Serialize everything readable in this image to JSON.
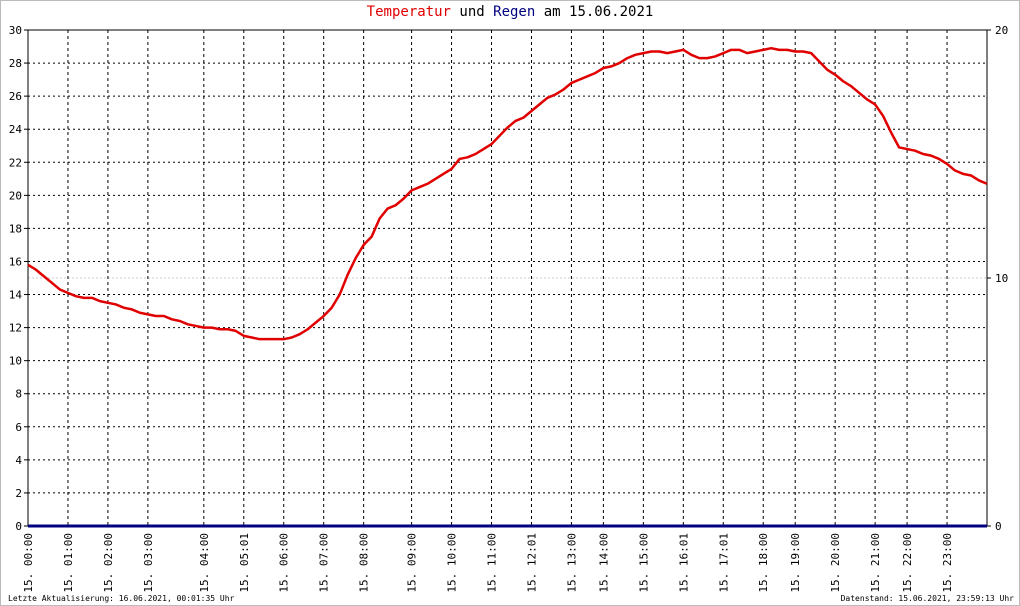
{
  "chart_data": {
    "type": "line",
    "title_join": "und",
    "title_suffix": "am 15.06.2021",
    "footer_left": "Letzte Aktualisierung: 16.06.2021, 00:01:35 Uhr",
    "footer_right": "Datenstand: 15.06.2021, 23:59:13 Uhr",
    "categories": [
      "15. 00:00",
      null,
      null,
      null,
      null,
      "15. 01:00",
      null,
      null,
      null,
      null,
      "15. 02:00",
      null,
      null,
      null,
      null,
      "15. 03:00",
      null,
      null,
      null,
      null,
      null,
      null,
      "15. 04:00",
      null,
      null,
      null,
      null,
      "15. 05:01",
      null,
      null,
      null,
      null,
      "15. 06:00",
      null,
      null,
      null,
      null,
      "15. 07:00",
      null,
      null,
      null,
      null,
      "15. 08:00",
      null,
      null,
      null,
      null,
      null,
      "15. 09:00",
      null,
      null,
      null,
      null,
      "15. 10:00",
      null,
      null,
      null,
      null,
      "15. 11:00",
      null,
      null,
      null,
      null,
      "15. 12:01",
      null,
      null,
      null,
      null,
      "15. 13:00",
      null,
      null,
      null,
      "15. 14:00",
      null,
      null,
      null,
      null,
      "15. 15:00",
      null,
      null,
      null,
      null,
      "15. 16:01",
      null,
      null,
      null,
      null,
      "15. 17:01",
      null,
      null,
      null,
      null,
      "15. 18:00",
      null,
      null,
      null,
      "15. 19:00",
      null,
      null,
      null,
      null,
      "15. 20:00",
      null,
      null,
      null,
      null,
      "15. 21:00",
      null,
      null,
      null,
      "15. 22:00",
      null,
      null,
      null,
      null,
      "15. 23:00",
      null,
      null,
      null,
      null,
      null
    ],
    "series": [
      {
        "name": "Temperatur",
        "color": "#e00000",
        "values": [
          15.8,
          15.5,
          15.1,
          14.7,
          14.3,
          14.1,
          13.9,
          13.8,
          13.8,
          13.6,
          13.5,
          13.4,
          13.2,
          13.1,
          12.9,
          12.8,
          12.7,
          12.7,
          12.5,
          12.4,
          12.2,
          12.1,
          12.0,
          12.0,
          11.9,
          11.9,
          11.8,
          11.5,
          11.4,
          11.3,
          11.3,
          11.3,
          11.3,
          11.4,
          11.6,
          11.9,
          12.3,
          12.7,
          13.2,
          14.0,
          15.2,
          16.2,
          17.0,
          17.5,
          18.6,
          19.2,
          19.4,
          19.8,
          20.3,
          20.5,
          20.7,
          21.0,
          21.3,
          21.6,
          22.2,
          22.3,
          22.5,
          22.8,
          23.1,
          23.6,
          24.1,
          24.5,
          24.7,
          25.1,
          25.5,
          25.9,
          26.1,
          26.4,
          26.8,
          27.0,
          27.2,
          27.4,
          27.7,
          27.8,
          28.0,
          28.3,
          28.5,
          28.6,
          28.7,
          28.7,
          28.6,
          28.7,
          28.8,
          28.5,
          28.3,
          28.3,
          28.4,
          28.6,
          28.8,
          28.8,
          28.6,
          28.7,
          28.8,
          28.9,
          28.8,
          28.8,
          28.7,
          28.7,
          28.6,
          28.1,
          27.6,
          27.3,
          26.9,
          26.6,
          26.2,
          25.8,
          25.5,
          24.8,
          23.8,
          22.9,
          22.8,
          22.7,
          22.5,
          22.4,
          22.2,
          21.9,
          21.5,
          21.3,
          21.2,
          20.9,
          20.7
        ]
      },
      {
        "name": "Regen",
        "color": "#000080",
        "axis": "y2",
        "values": [
          0,
          0,
          0,
          0,
          0,
          0,
          0,
          0,
          0,
          0,
          0,
          0,
          0,
          0,
          0,
          0,
          0,
          0,
          0,
          0,
          0,
          0,
          0,
          0,
          0,
          0,
          0,
          0,
          0,
          0,
          0,
          0,
          0,
          0,
          0,
          0,
          0,
          0,
          0,
          0,
          0,
          0,
          0,
          0,
          0,
          0,
          0,
          0,
          0,
          0,
          0,
          0,
          0,
          0,
          0,
          0,
          0,
          0,
          0,
          0,
          0,
          0,
          0,
          0,
          0,
          0,
          0,
          0,
          0,
          0,
          0,
          0,
          0,
          0,
          0,
          0,
          0,
          0,
          0,
          0,
          0,
          0,
          0,
          0,
          0,
          0,
          0,
          0,
          0,
          0,
          0,
          0,
          0,
          0,
          0,
          0,
          0,
          0,
          0,
          0,
          0,
          0,
          0,
          0,
          0,
          0,
          0,
          0,
          0,
          0,
          0,
          0,
          0,
          0,
          0,
          0,
          0,
          0,
          0,
          0,
          0
        ]
      }
    ],
    "ylim": [
      0,
      30
    ],
    "yticks": [
      0,
      2,
      4,
      6,
      8,
      10,
      12,
      14,
      16,
      18,
      20,
      22,
      24,
      26,
      28,
      30
    ],
    "y2lim": [
      0,
      20
    ],
    "y2ticks": [
      0,
      10,
      20
    ],
    "grid": true
  }
}
